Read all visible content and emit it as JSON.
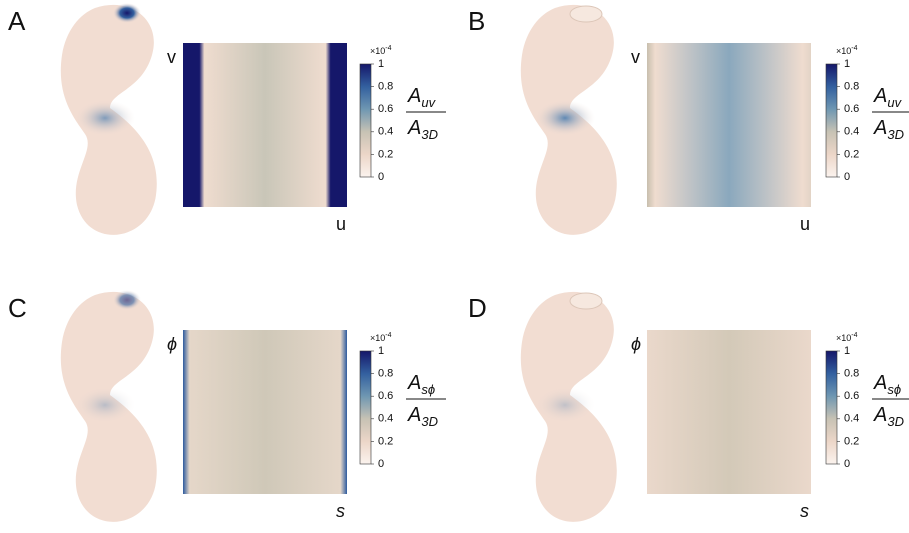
{
  "panels": [
    {
      "label": "A",
      "x_label": "u",
      "y_label": "v",
      "exponent": {
        "base": "×10",
        "power": "-4"
      },
      "clim": [
        0,
        1
      ],
      "ticks": [
        0,
        0.2,
        0.4,
        0.6,
        0.8,
        1
      ],
      "numerator": {
        "base": "A",
        "sub": "uv"
      },
      "denominator": {
        "base": "A",
        "sub": "3D"
      }
    },
    {
      "label": "B",
      "x_label": "u",
      "y_label": "v",
      "exponent": {
        "base": "×10",
        "power": "-4"
      },
      "clim": [
        0,
        1
      ],
      "ticks": [
        0,
        0.2,
        0.4,
        0.6,
        0.8,
        1
      ],
      "numerator": {
        "base": "A",
        "sub": "uv"
      },
      "denominator": {
        "base": "A",
        "sub": "3D"
      }
    },
    {
      "label": "C",
      "x_label": "s",
      "y_label": "ϕ",
      "exponent": {
        "base": "×10",
        "power": "-4"
      },
      "clim": [
        0,
        1
      ],
      "ticks": [
        0,
        0.2,
        0.4,
        0.6,
        0.8,
        1
      ],
      "numerator": {
        "base": "A",
        "sub": "sϕ"
      },
      "denominator": {
        "base": "A",
        "sub": "3D"
      }
    },
    {
      "label": "D",
      "x_label": "s",
      "y_label": "ϕ",
      "exponent": {
        "base": "×10",
        "power": "-4"
      },
      "clim": [
        0,
        1
      ],
      "ticks": [
        0,
        0.2,
        0.4,
        0.6,
        0.8,
        1
      ],
      "numerator": {
        "base": "A",
        "sub": "sϕ"
      },
      "denominator": {
        "base": "A",
        "sub": "3D"
      }
    }
  ]
}
